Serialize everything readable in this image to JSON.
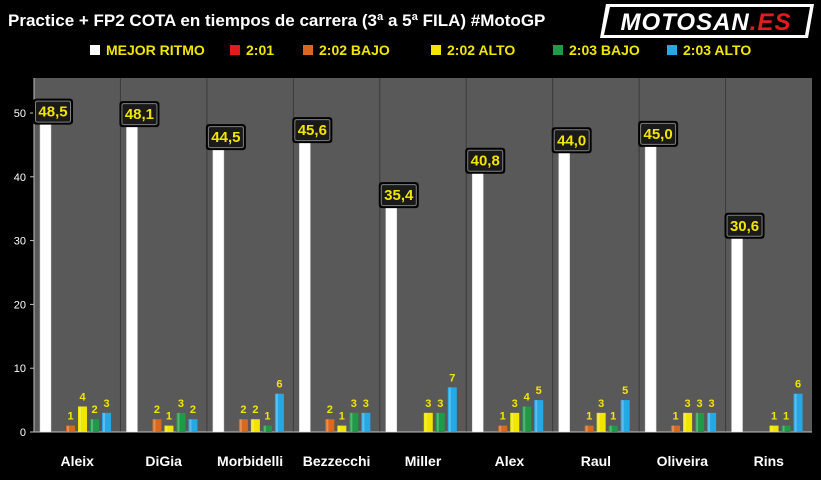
{
  "title": "Practice + FP2  COTA en tiempos de carrera (3ª a 5ª FILA) #MotoGP",
  "logo_text": "MOTOSAN.ES",
  "colors": {
    "background": "#000000",
    "plot_bg": "#595959",
    "best_pace": "#ffffff",
    "s201": "#e31b1b",
    "s202_bajo": "#d9691f",
    "s202_alto": "#f2e600",
    "s203_bajo": "#1f9a48",
    "s203_alto": "#25a9e6",
    "callout_text": "#f2e600",
    "title_text": "#ffffff"
  },
  "chart_data": {
    "type": "bar",
    "title": "Practice + FP2  COTA en tiempos de carrera (3ª a 5ª FILA) #MotoGP",
    "categories": [
      "Aleix",
      "DiGia",
      "Morbidelli",
      "Bezzecchi",
      "Miller",
      "Alex",
      "Raul",
      "Oliveira",
      "Rins"
    ],
    "ylim": [
      0,
      55
    ],
    "yticks": [
      0,
      10,
      20,
      30,
      40,
      50
    ],
    "grid": false,
    "legend_position": "top",
    "series": [
      {
        "name": "MEJOR RITMO",
        "color": "#ffffff",
        "values": [
          48.5,
          48.1,
          44.5,
          45.6,
          35.4,
          40.8,
          44.0,
          45.0,
          30.6
        ],
        "labels": [
          "48,5",
          "48,1",
          "44,5",
          "45,6",
          "35,4",
          "40,8",
          "44,0",
          "45,0",
          "30,6"
        ]
      },
      {
        "name": "2:01",
        "color": "#e31b1b",
        "values": [
          0,
          0,
          0,
          0,
          0,
          0,
          0,
          0,
          0
        ],
        "labels": [
          "",
          "",
          "",
          "",
          "",
          "",
          "",
          "",
          ""
        ]
      },
      {
        "name": "2:02 BAJO",
        "color": "#d9691f",
        "values": [
          1,
          2,
          2,
          2,
          0,
          1,
          1,
          1,
          0
        ],
        "labels": [
          "1",
          "2",
          "2",
          "2",
          "",
          "1",
          "1",
          "1",
          ""
        ]
      },
      {
        "name": "2:02 ALTO",
        "color": "#f2e600",
        "values": [
          4,
          1,
          2,
          1,
          3,
          3,
          3,
          3,
          1
        ],
        "labels": [
          "4",
          "1",
          "2",
          "1",
          "3",
          "3",
          "3",
          "3",
          "1"
        ]
      },
      {
        "name": "2:03 BAJO",
        "color": "#1f9a48",
        "values": [
          2,
          3,
          1,
          3,
          3,
          4,
          1,
          3,
          1
        ],
        "labels": [
          "2",
          "3",
          "1",
          "3",
          "3",
          "4",
          "1",
          "3",
          "1"
        ]
      },
      {
        "name": "2:03 ALTO",
        "color": "#25a9e6",
        "values": [
          3,
          2,
          6,
          3,
          7,
          5,
          5,
          3,
          6
        ],
        "labels": [
          "3",
          "2",
          "6",
          "3",
          "7",
          "5",
          "5",
          "3",
          "6"
        ]
      }
    ]
  }
}
